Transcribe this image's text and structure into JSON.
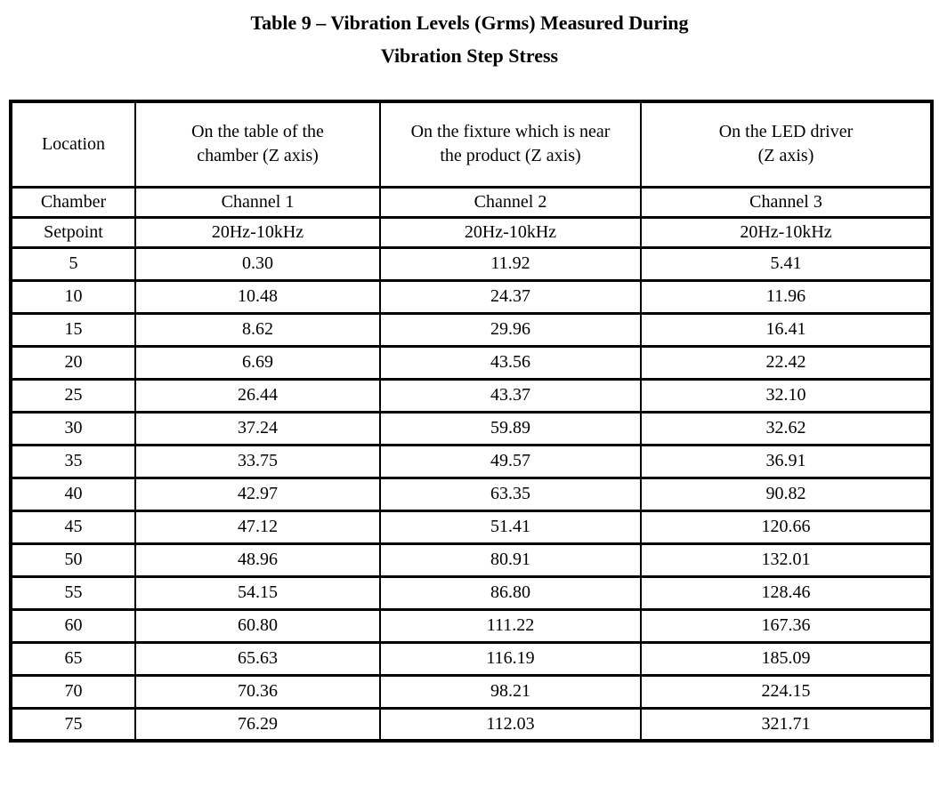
{
  "title": {
    "line1": "Table 9 – Vibration Levels (Grms) Measured During",
    "line2": "Vibration Step Stress"
  },
  "table": {
    "columns": [
      {
        "lines": [
          "Location"
        ]
      },
      {
        "lines": [
          "On the table of the",
          "chamber (Z axis)"
        ]
      },
      {
        "lines": [
          "On the fixture which is near",
          "the product (Z axis)"
        ]
      },
      {
        "lines": [
          "On the LED driver",
          "(Z axis)"
        ]
      }
    ],
    "channel_row": [
      "Chamber",
      "Channel 1",
      "Channel 2",
      "Channel 3"
    ],
    "setpoint_row": [
      "Setpoint",
      "20Hz-10kHz",
      "20Hz-10kHz",
      "20Hz-10kHz"
    ],
    "rows": [
      [
        "5",
        "0.30",
        "11.92",
        "5.41"
      ],
      [
        "10",
        "10.48",
        "24.37",
        "11.96"
      ],
      [
        "15",
        "8.62",
        "29.96",
        "16.41"
      ],
      [
        "20",
        "6.69",
        "43.56",
        "22.42"
      ],
      [
        "25",
        "26.44",
        "43.37",
        "32.10"
      ],
      [
        "30",
        "37.24",
        "59.89",
        "32.62"
      ],
      [
        "35",
        "33.75",
        "49.57",
        "36.91"
      ],
      [
        "40",
        "42.97",
        "63.35",
        "90.82"
      ],
      [
        "45",
        "47.12",
        "51.41",
        "120.66"
      ],
      [
        "50",
        "48.96",
        "80.91",
        "132.01"
      ],
      [
        "55",
        "54.15",
        "86.80",
        "128.46"
      ],
      [
        "60",
        "60.80",
        "111.22",
        "167.36"
      ],
      [
        "65",
        "65.63",
        "116.19",
        "185.09"
      ],
      [
        "70",
        "70.36",
        "98.21",
        "224.15"
      ],
      [
        "75",
        "76.29",
        "112.03",
        "321.71"
      ]
    ]
  },
  "chart_data": {
    "type": "table",
    "title": "Table 9 – Vibration Levels (Grms) Measured During Vibration Step Stress",
    "categories": [
      5,
      10,
      15,
      20,
      25,
      30,
      35,
      40,
      45,
      50,
      55,
      60,
      65,
      70,
      75
    ],
    "xlabel": "Chamber Setpoint",
    "ylabel": "Vibration Level (Grms), 20Hz-10kHz",
    "series": [
      {
        "name": "Channel 1 - On the table of the chamber (Z axis)",
        "values": [
          0.3,
          10.48,
          8.62,
          6.69,
          26.44,
          37.24,
          33.75,
          42.97,
          47.12,
          48.96,
          54.15,
          60.8,
          65.63,
          70.36,
          76.29
        ]
      },
      {
        "name": "Channel 2 - On the fixture which is near the product (Z axis)",
        "values": [
          11.92,
          24.37,
          29.96,
          43.56,
          43.37,
          59.89,
          49.57,
          63.35,
          51.41,
          80.91,
          86.8,
          111.22,
          116.19,
          98.21,
          112.03
        ]
      },
      {
        "name": "Channel 3 - On the LED driver (Z axis)",
        "values": [
          5.41,
          11.96,
          16.41,
          22.42,
          32.1,
          32.62,
          36.91,
          90.82,
          120.66,
          132.01,
          128.46,
          167.36,
          185.09,
          224.15,
          321.71
        ]
      }
    ]
  }
}
